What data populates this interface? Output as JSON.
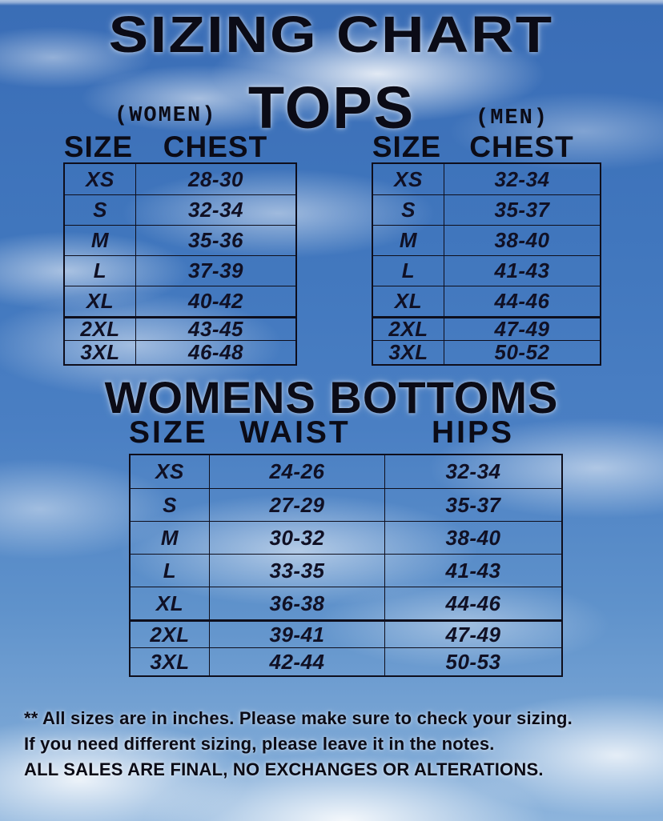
{
  "title": "SIZING CHART",
  "tops": {
    "heading": "TOPS",
    "women": {
      "label": "(WOMEN)",
      "columns": [
        "SIZE",
        "CHEST"
      ],
      "rows": [
        [
          "XS",
          "28-30"
        ],
        [
          "S",
          "32-34"
        ],
        [
          "M",
          "35-36"
        ],
        [
          "L",
          "37-39"
        ],
        [
          "XL",
          "40-42"
        ],
        [
          "2XL",
          "43-45"
        ],
        [
          "3XL",
          "46-48"
        ]
      ]
    },
    "men": {
      "label": "(MEN)",
      "columns": [
        "SIZE",
        "CHEST"
      ],
      "rows": [
        [
          "XS",
          "32-34"
        ],
        [
          "S",
          "35-37"
        ],
        [
          "M",
          "38-40"
        ],
        [
          "L",
          "41-43"
        ],
        [
          "XL",
          "44-46"
        ],
        [
          "2XL",
          "47-49"
        ],
        [
          "3XL",
          "50-52"
        ]
      ]
    }
  },
  "bottoms": {
    "heading": "WOMENS BOTTOMS",
    "columns": [
      "SIZE",
      "WAIST",
      "HIPS"
    ],
    "rows": [
      [
        "XS",
        "24-26",
        "32-34"
      ],
      [
        "S",
        "27-29",
        "35-37"
      ],
      [
        "M",
        "30-32",
        "38-40"
      ],
      [
        "L",
        "33-35",
        "41-43"
      ],
      [
        "XL",
        "36-38",
        "44-46"
      ],
      [
        "2XL",
        "39-41",
        "47-49"
      ],
      [
        "3XL",
        "42-44",
        "50-53"
      ]
    ]
  },
  "footer": {
    "line1": "** All sizes are in inches. Please make sure to check your sizing.",
    "line2": "If you need different sizing, please leave it in the notes.",
    "line3": "ALL SALES ARE FINAL, NO EXCHANGES OR ALTERATIONS."
  },
  "colors": {
    "sky_blue": "#4a7fc3",
    "cloud_white": "#ffffff",
    "text_black": "#0b0b16"
  }
}
